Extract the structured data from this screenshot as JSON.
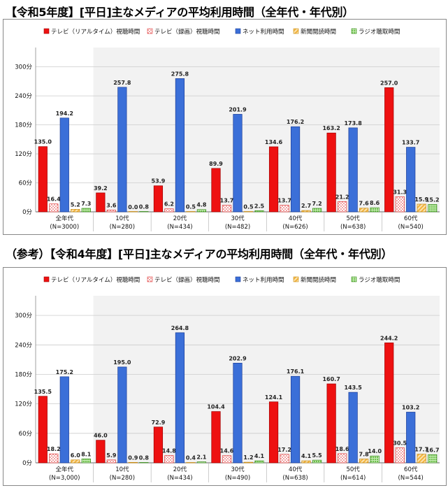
{
  "chart_data": [
    {
      "type": "bar",
      "title": "【令和5年度】[平日]主なメディアの平均利用時間（全年代・年代別）",
      "categories": [
        {
          "name": "全年代",
          "n": "(N=3000)"
        },
        {
          "name": "10代",
          "n": "(N=280)"
        },
        {
          "name": "20代",
          "n": "(N=434)"
        },
        {
          "name": "30代",
          "n": "(N=482)"
        },
        {
          "name": "40代",
          "n": "(N=626)"
        },
        {
          "name": "50代",
          "n": "(N=638)"
        },
        {
          "name": "60代",
          "n": "(N=540)"
        }
      ],
      "yticks": [
        "0分",
        "60分",
        "120分",
        "180分",
        "240分",
        "300分"
      ],
      "ylim": [
        0,
        340
      ],
      "series": [
        {
          "name": "テレビ（リアルタイム）視聴時間",
          "values": [
            135.0,
            39.2,
            53.9,
            89.9,
            134.6,
            163.2,
            257.0
          ]
        },
        {
          "name": "テレビ（録画）視聴時間",
          "values": [
            16.4,
            3.6,
            6.2,
            13.7,
            13.7,
            21.2,
            31.3
          ]
        },
        {
          "name": "ネット利用時間",
          "values": [
            194.2,
            257.8,
            275.8,
            201.9,
            176.2,
            173.8,
            133.7
          ]
        },
        {
          "name": "新聞閲読時間",
          "values": [
            5.2,
            0.0,
            0.5,
            0.5,
            2.7,
            7.6,
            15.9
          ]
        },
        {
          "name": "ラジオ聴取時間",
          "values": [
            7.3,
            0.8,
            4.8,
            2.5,
            7.2,
            8.6,
            15.2
          ]
        }
      ],
      "legend": "top"
    },
    {
      "type": "bar",
      "title": "（参考）【令和4年度】[平日]主なメディアの平均利用時間（全年代・年代別）",
      "categories": [
        {
          "name": "全年代",
          "n": "(N=3,000)"
        },
        {
          "name": "10代",
          "n": "(N=280)"
        },
        {
          "name": "20代",
          "n": "(N=434)"
        },
        {
          "name": "30代",
          "n": "(N=490)"
        },
        {
          "name": "40代",
          "n": "(N=638)"
        },
        {
          "name": "50代",
          "n": "(N=614)"
        },
        {
          "name": "60代",
          "n": "(N=544)"
        }
      ],
      "yticks": [
        "0分",
        "60分",
        "120分",
        "180分",
        "240分",
        "300分"
      ],
      "ylim": [
        0,
        340
      ],
      "series": [
        {
          "name": "テレビ（リアルタイム）視聴時間",
          "values": [
            135.5,
            46.0,
            72.9,
            104.4,
            124.1,
            160.7,
            244.2
          ]
        },
        {
          "name": "テレビ（録画）視聴時間",
          "values": [
            18.2,
            5.9,
            14.8,
            14.6,
            17.2,
            18.6,
            30.5
          ]
        },
        {
          "name": "ネット利用時間",
          "values": [
            175.2,
            195.0,
            264.8,
            202.9,
            176.1,
            143.5,
            103.2
          ]
        },
        {
          "name": "新聞閲読時間",
          "values": [
            6.0,
            0.9,
            0.4,
            1.2,
            4.1,
            7.8,
            17.7
          ]
        },
        {
          "name": "ラジオ聴取時間",
          "values": [
            8.1,
            0.8,
            2.1,
            4.1,
            5.5,
            14.0,
            16.7
          ]
        }
      ],
      "legend": "top"
    }
  ],
  "colors": {
    "tv_realtime": "#ee1111",
    "tv_recorded": "#ee3333",
    "net": "#3b6fd8",
    "newspaper": "#f2b33d",
    "radio": "#6cc04a",
    "grid": "#cccccc"
  }
}
